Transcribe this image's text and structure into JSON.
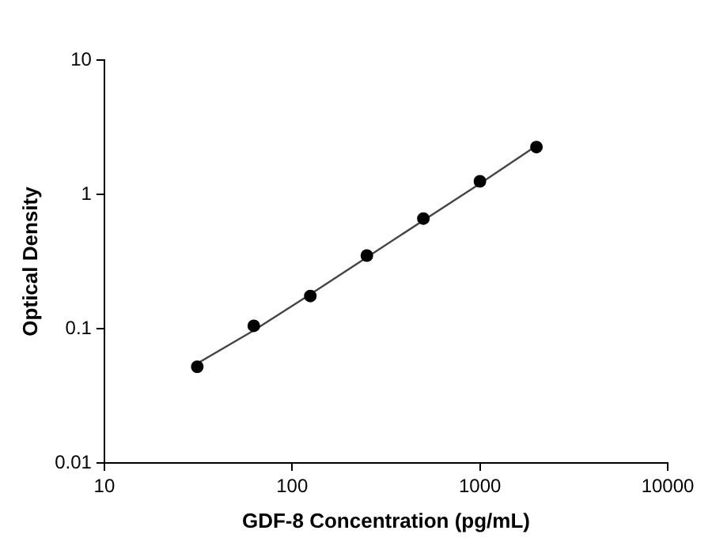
{
  "chart_data": {
    "type": "scatter",
    "xlabel": "GDF-8 Concentration (pg/mL)",
    "ylabel": "Optical Density",
    "log": "xy",
    "xlim": [
      10,
      10000
    ],
    "xticks": [
      10,
      100,
      1000,
      10000
    ],
    "ylim": [
      0.01,
      10
    ],
    "yticks": [
      0.01,
      0.1,
      1,
      10
    ],
    "grid": false,
    "legend": false,
    "marker": "circle",
    "series": [
      {
        "color": "#000000",
        "x": [
          31.25,
          62.5,
          125,
          250,
          500,
          1000,
          2000
        ],
        "values": [
          0.052,
          0.105,
          0.175,
          0.35,
          0.66,
          1.25,
          2.25
        ]
      },
      {
        "type": "line",
        "color": "#444444",
        "marker": "none",
        "line_style": "solid",
        "x": [
          31.25,
          62.5,
          125,
          250,
          500,
          1000,
          2000
        ],
        "values": [
          0.055,
          0.097,
          0.18,
          0.34,
          0.64,
          1.2,
          2.3
        ]
      }
    ]
  }
}
